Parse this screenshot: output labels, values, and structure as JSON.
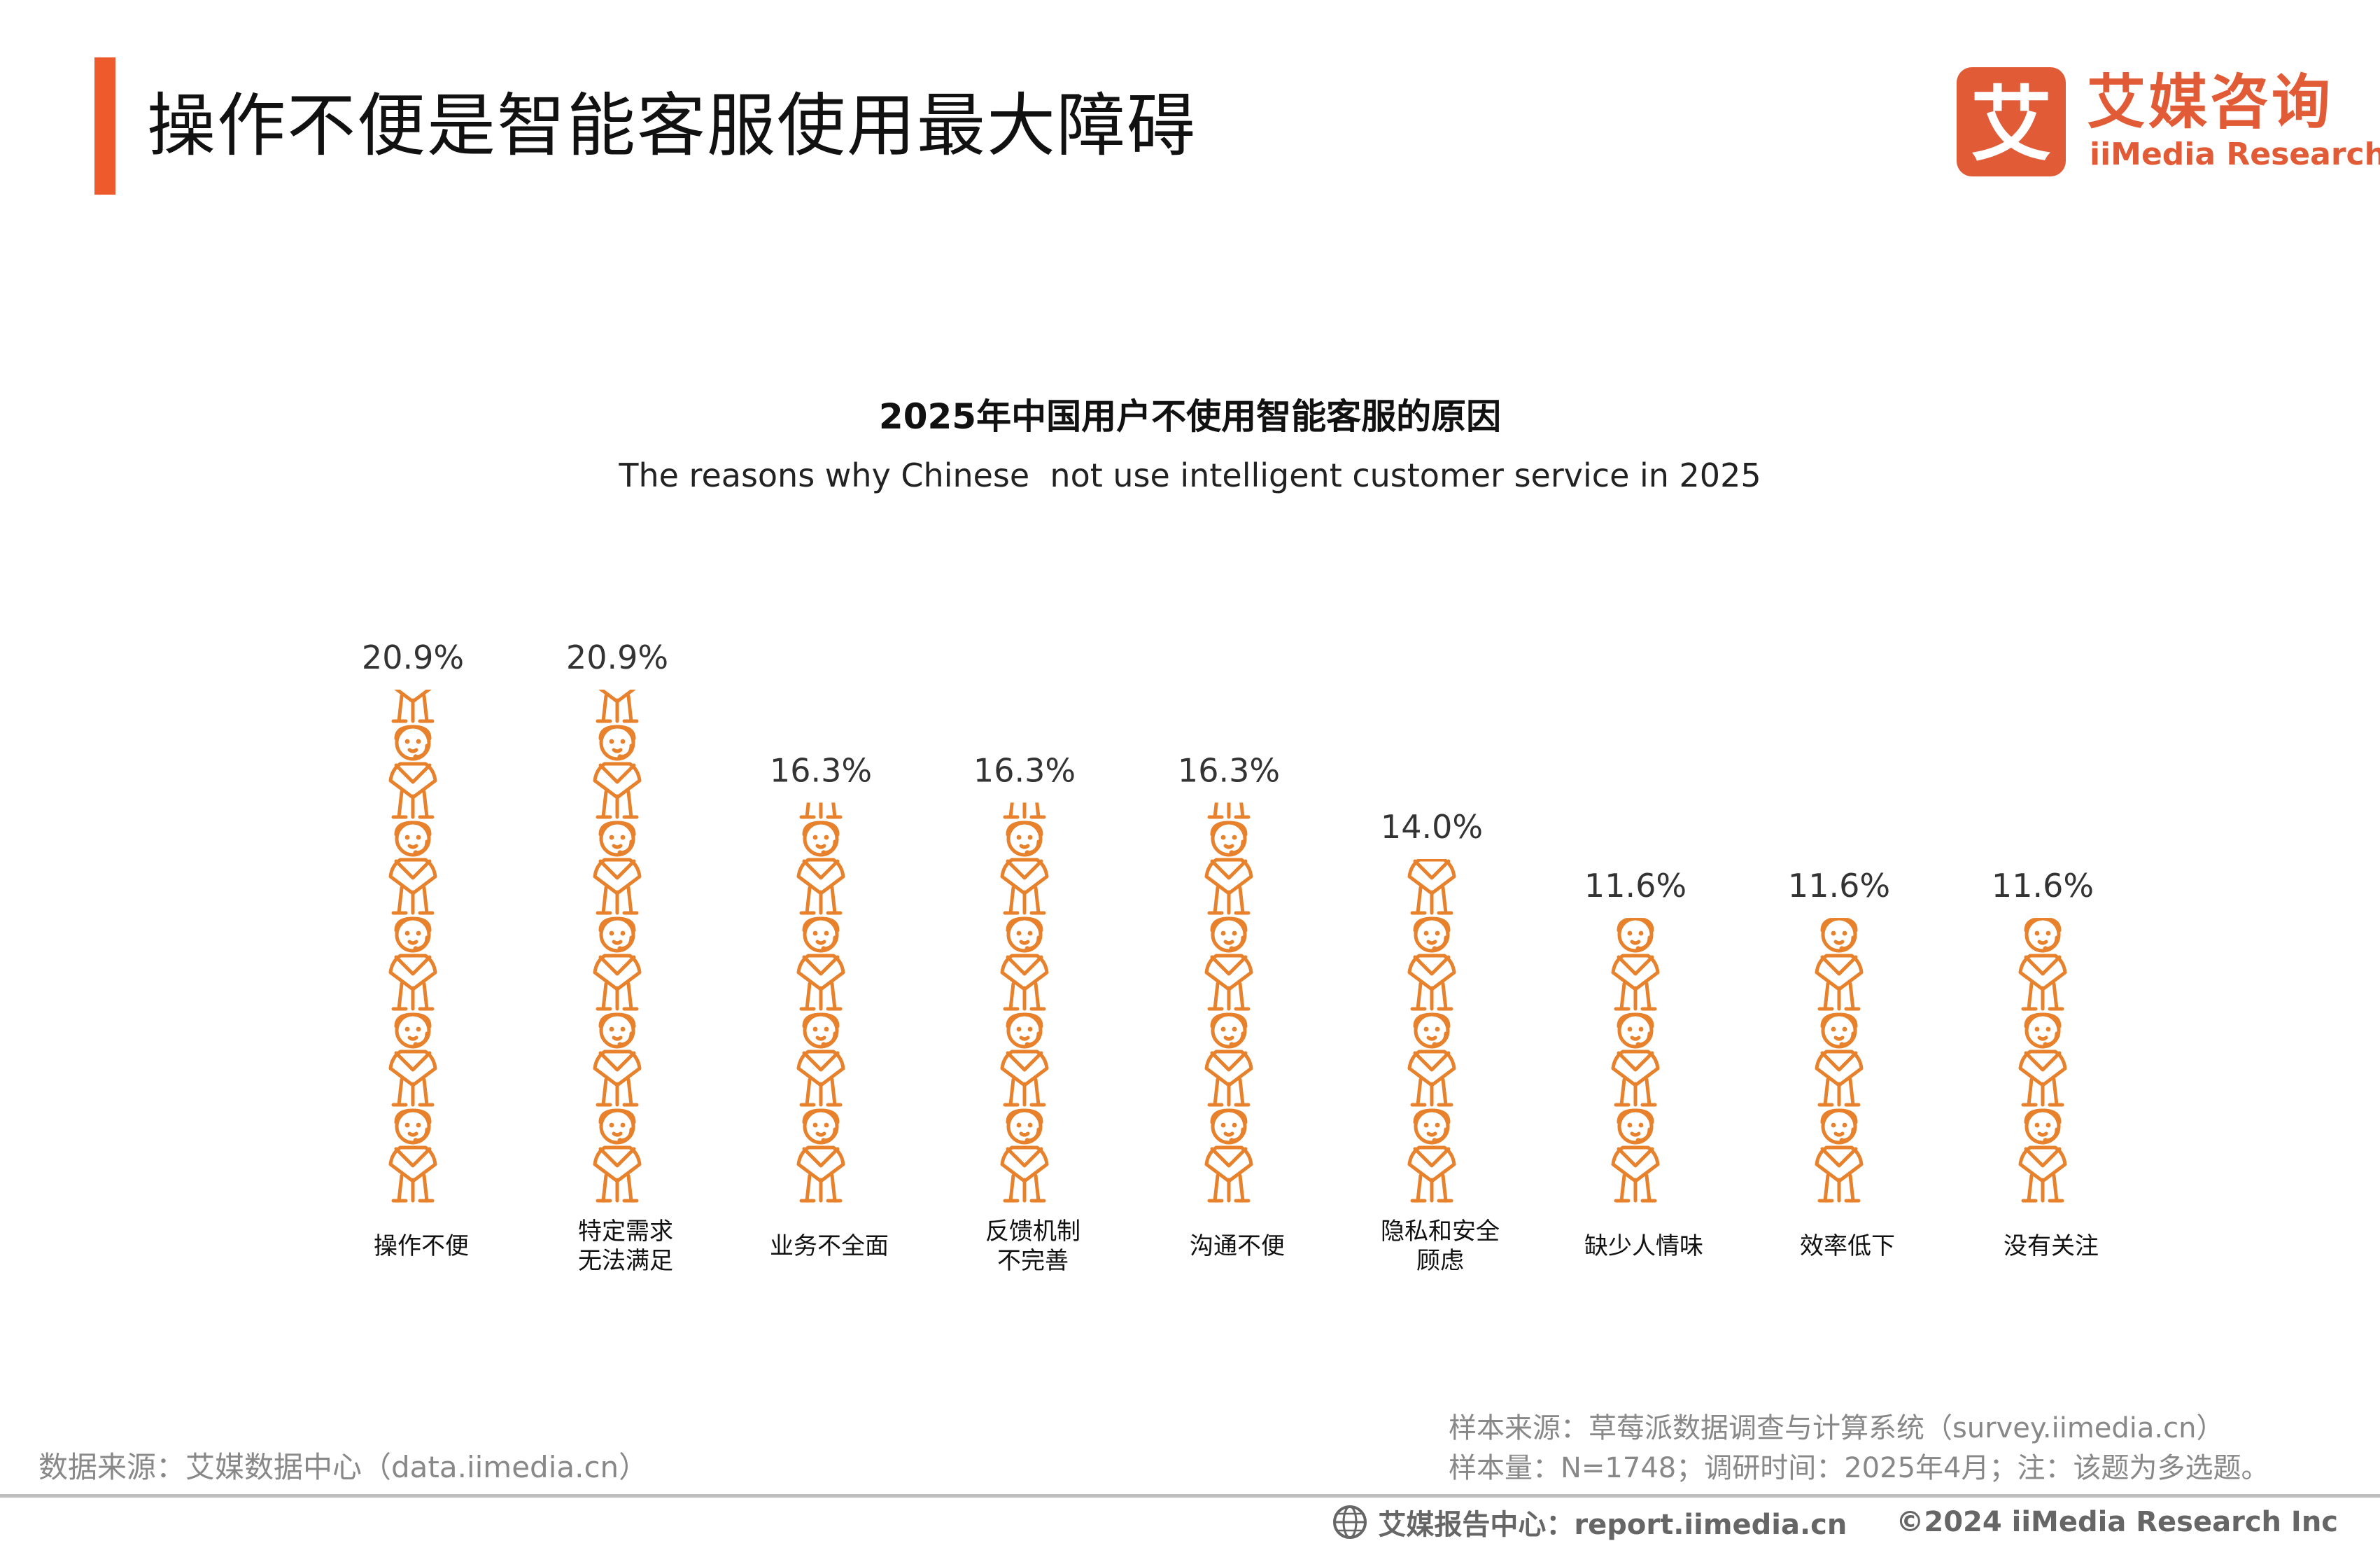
{
  "header": {
    "title": "操作不便是智能客服使用最大障碍",
    "accent_color": "#EE5A2B",
    "logo": {
      "mark_char": "艾",
      "name_cn": "艾媒咨询",
      "name_en": "iiMedia Research",
      "color": "#E25B37"
    }
  },
  "chart_data": {
    "type": "pictograph",
    "title": "2025年中国用户不使用智能客服的原因",
    "subtitle": "The reasons why Chinese  not use intelligent customer service in 2025",
    "icon": "customer-service-person-icon",
    "icon_color": "#E8812C",
    "unit": "%",
    "categories": [
      [
        "操作不便"
      ],
      [
        "特定需求",
        "无法满足"
      ],
      [
        "业务不全面"
      ],
      [
        "反馈机制",
        "不完善"
      ],
      [
        "沟通不便"
      ],
      [
        "隐私和安全",
        "顾虑"
      ],
      [
        "缺少人情味"
      ],
      [
        "效率低下"
      ],
      [
        "没有关注"
      ]
    ],
    "values": [
      20.9,
      20.9,
      16.3,
      16.3,
      16.3,
      14.0,
      11.6,
      11.6,
      11.6
    ],
    "value_labels": [
      "20.9%",
      "20.9%",
      "16.3%",
      "16.3%",
      "16.3%",
      "14.0%",
      "11.6%",
      "11.6%",
      "11.6%"
    ]
  },
  "sources": {
    "left": "数据来源：艾媒数据中心（data.iimedia.cn）",
    "right_line1": "样本来源：草莓派数据调查与计算系统（survey.iimedia.cn）",
    "right_line2": "样本量：N=1748；调研时间：2025年4月；注：该题为多选题。"
  },
  "footer": {
    "report_center": "艾媒报告中心：report.iimedia.cn",
    "copyright": "©2024  iiMedia Research  Inc"
  }
}
